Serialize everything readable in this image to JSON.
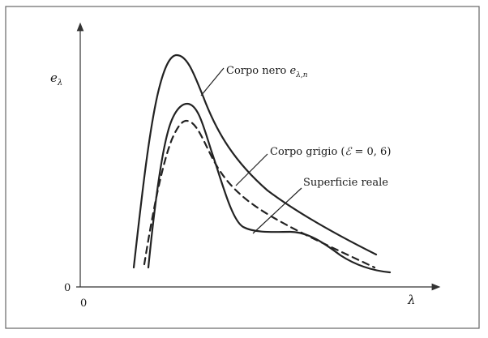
{
  "diagram": {
    "y_axis_label": "e",
    "y_axis_label_sub": "λ",
    "x_axis_label": "λ",
    "y_origin_label": "0",
    "x_origin_label": "0",
    "curves": [
      {
        "label_text": "Corpo nero ",
        "label_symbol": "e",
        "label_symbol_sub": "λ,n",
        "style": "solid"
      },
      {
        "label_text": "Corpo grigio (",
        "label_symbol": "ℰ",
        "label_value": " = 0, 6)",
        "style": "dashed"
      },
      {
        "label_text": "Superficie reale",
        "style": "solid"
      }
    ]
  }
}
